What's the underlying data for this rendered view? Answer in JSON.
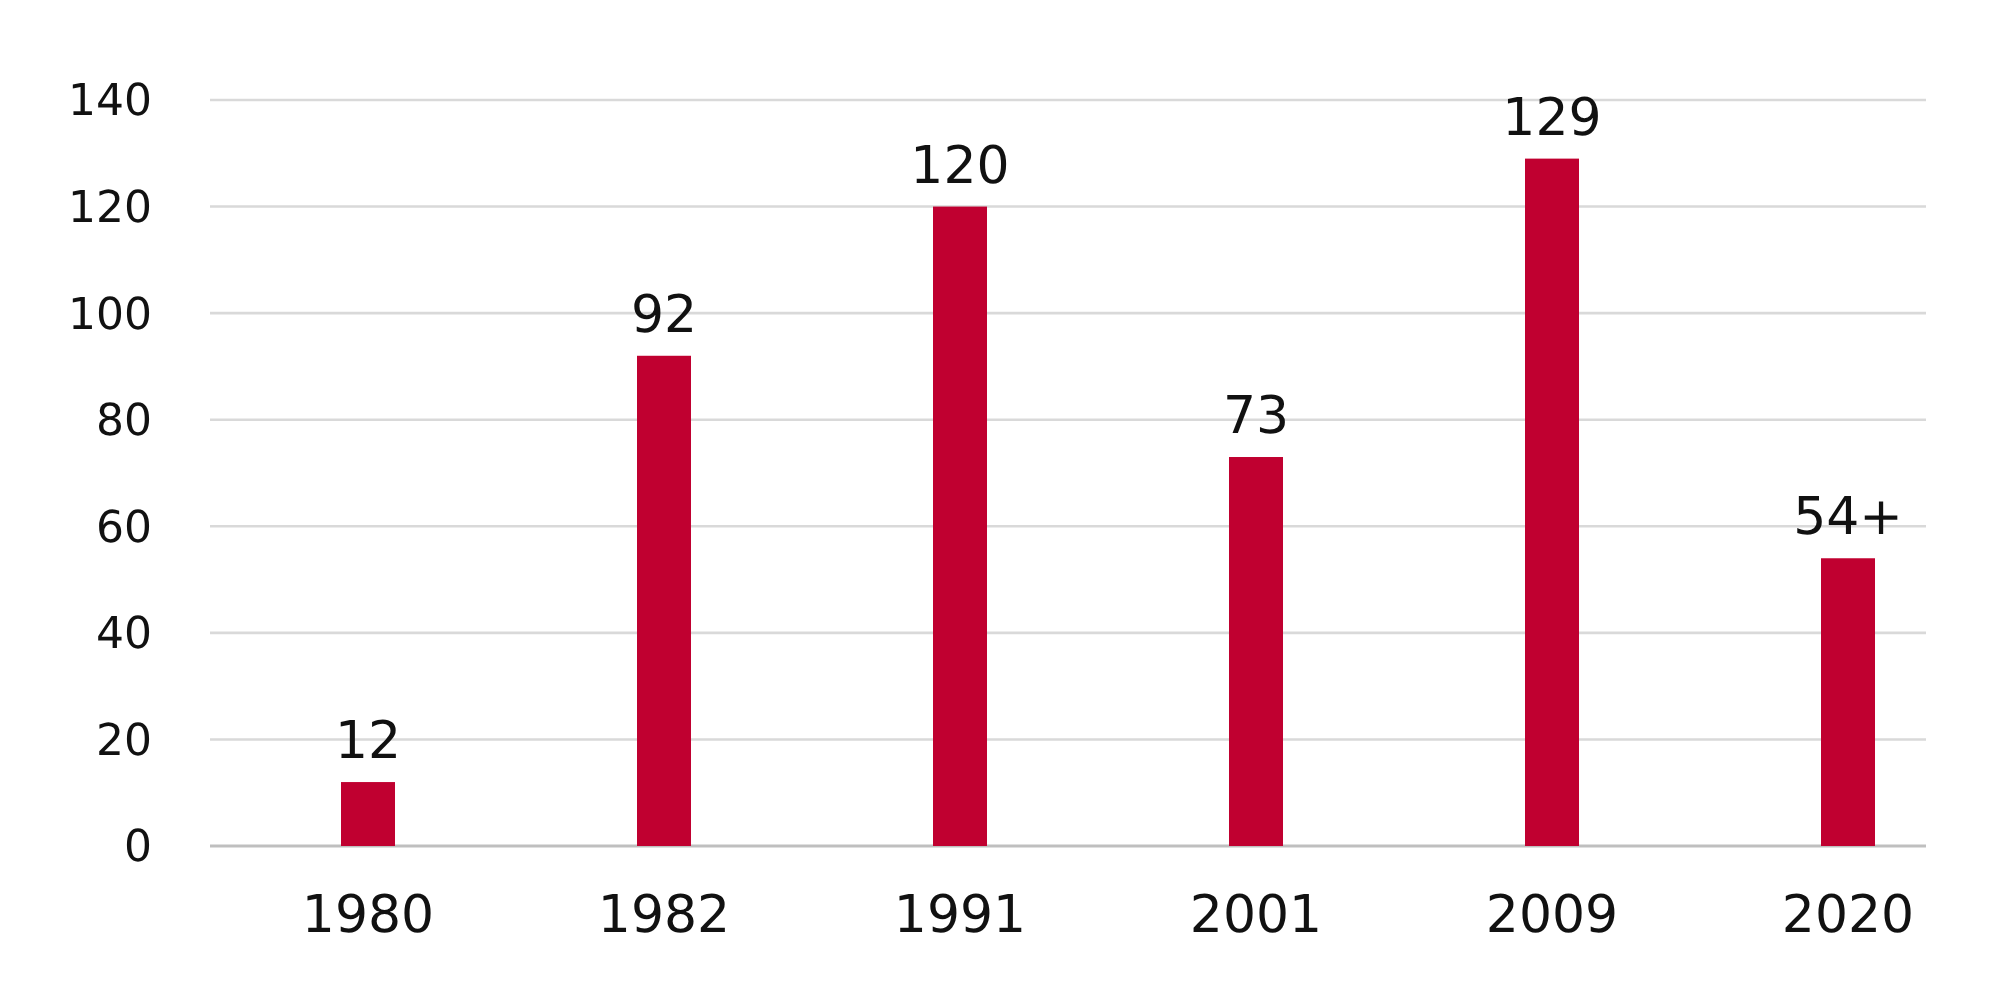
{
  "chart_data": {
    "type": "bar",
    "categories": [
      "1980",
      "1982",
      "1991",
      "2001",
      "2009",
      "2020"
    ],
    "values": [
      12,
      92,
      120,
      73,
      129,
      54
    ],
    "value_labels": [
      "12",
      "92",
      "120",
      "73",
      "129",
      "54+"
    ],
    "color": "#c00030",
    "ylim": [
      0,
      140
    ],
    "yticks": [
      0,
      20,
      40,
      60,
      80,
      100,
      120,
      140
    ],
    "grid": "y"
  }
}
